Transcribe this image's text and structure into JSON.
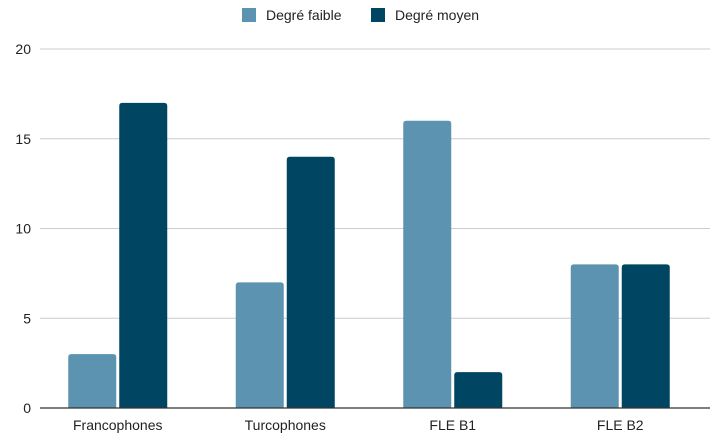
{
  "chart_data": {
    "type": "bar",
    "title": "",
    "xlabel": "",
    "ylabel": "",
    "categories": [
      "Francophones",
      "Turcophones",
      "FLE B1",
      "FLE B2"
    ],
    "series": [
      {
        "name": "Degré faible",
        "values": [
          3,
          7,
          16,
          8
        ],
        "color": "#5b93b0"
      },
      {
        "name": "Degré moyen",
        "values": [
          17,
          14,
          2,
          8
        ],
        "color": "#004561"
      }
    ],
    "ylim": [
      0,
      20
    ],
    "yticks": [
      "0",
      "5",
      "10",
      "15",
      "20"
    ],
    "grid": true,
    "legend_position": "top-center",
    "gridline_color": "#cccccc",
    "axis_color": "#333333"
  }
}
